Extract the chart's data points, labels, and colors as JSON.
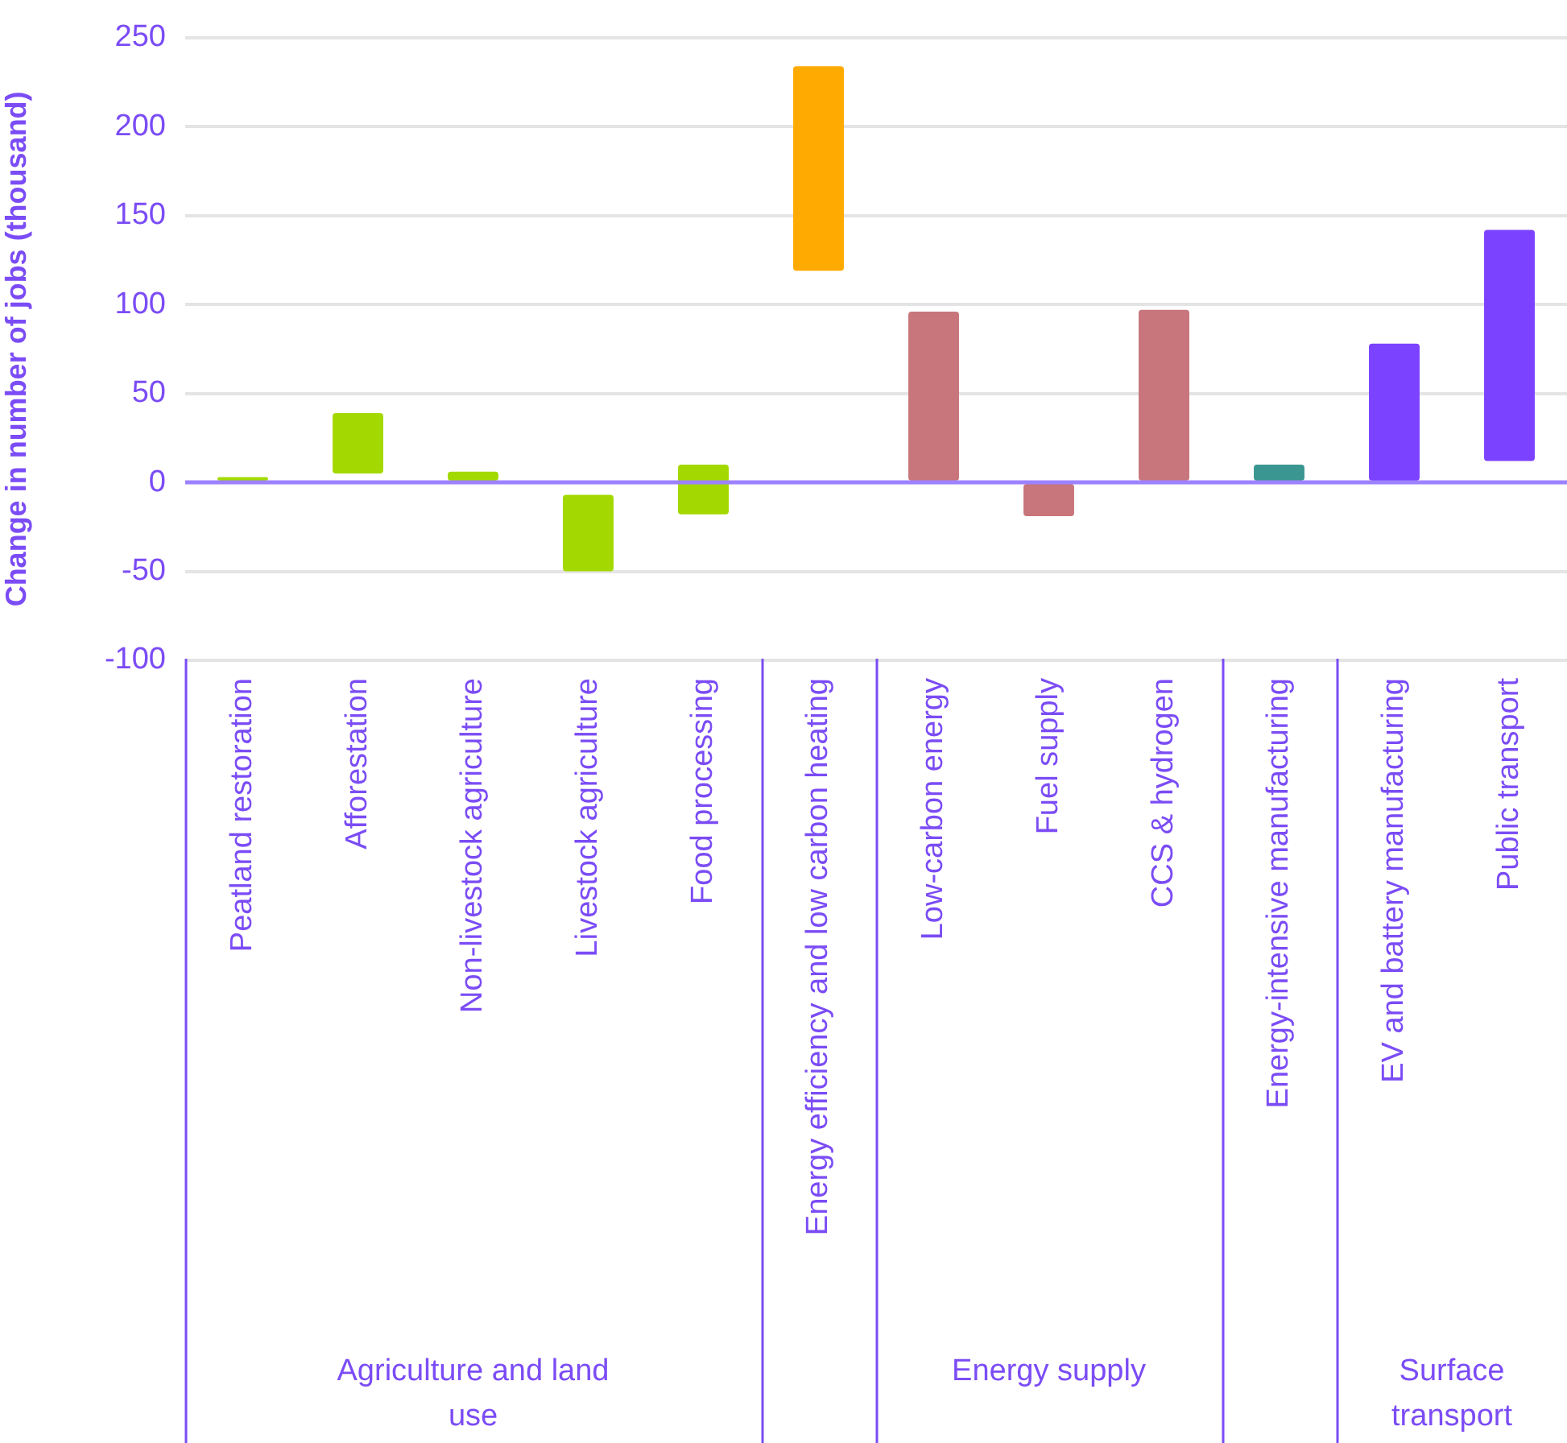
{
  "chart_data": {
    "type": "bar",
    "ylabel": "Change in number of jobs (thousand)",
    "categories": [
      "Peatland restoration",
      "Afforestation",
      "Non-livestock agriculture",
      "Livestock agriculture",
      "Food processing",
      "Energy efficiency and low carbon heating",
      "Low-carbon energy",
      "Fuel supply",
      "CCS & hydrogen",
      "Energy-intensive manufacturing",
      "EV and battery manufacturing",
      "Public transport"
    ],
    "values": [
      3,
      34,
      6,
      43,
      28,
      115,
      96,
      19,
      97,
      10,
      78,
      130
    ],
    "base": [
      0,
      5,
      0,
      -50,
      -18,
      119,
      0,
      -19,
      0,
      0,
      0,
      12
    ],
    "colors": [
      "#a3d900",
      "#a3d900",
      "#a3d900",
      "#a3d900",
      "#a3d900",
      "#ffaa00",
      "#c8757b",
      "#c8757b",
      "#c8757b",
      "#3a9690",
      "#7b42ff",
      "#7b42ff"
    ],
    "ref_lines": [
      {
        "axis": "y",
        "value": 0,
        "color": "#9d82ff"
      }
    ],
    "ylim": [
      -100,
      250
    ],
    "yticks": [
      -100,
      -50,
      0,
      50,
      100,
      150,
      200,
      250
    ],
    "grid": "y",
    "annotations": [
      "Agriculture and land use",
      "Energy supply",
      "Surface transport"
    ]
  }
}
